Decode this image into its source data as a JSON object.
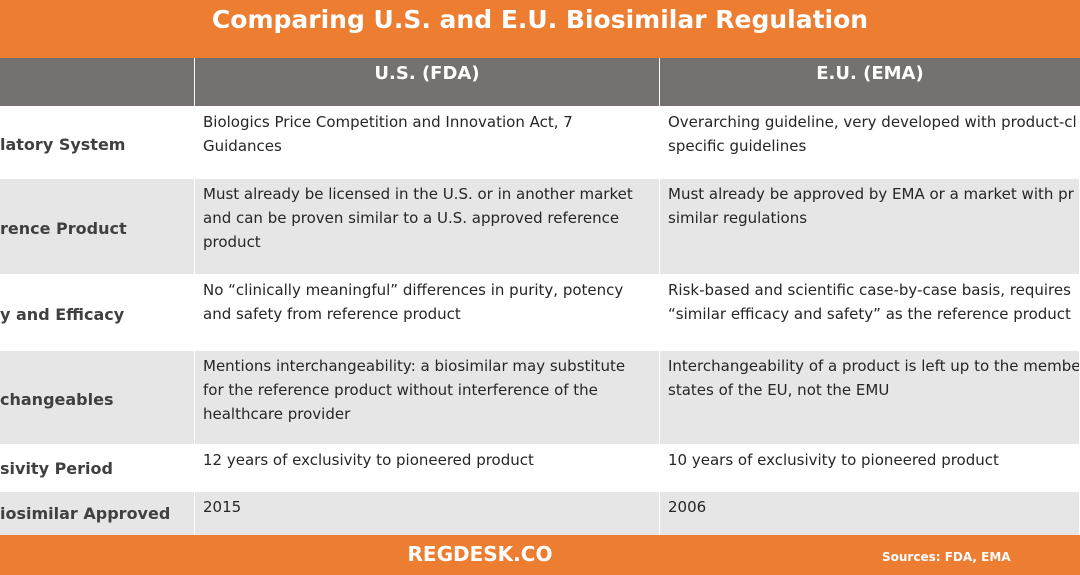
{
  "header": {
    "title": "Comparing U.S. and E.U. Biosimilar Regulation"
  },
  "table": {
    "columns": [
      "U.S. (FDA)",
      "E.U. (EMA)"
    ],
    "rows": [
      {
        "label": "latory System",
        "us": [
          "Biologics Price Competition and Innovation Act, 7",
          "Guidances"
        ],
        "eu": [
          "Overarching guideline, very developed with product-cl",
          "specific guidelines"
        ]
      },
      {
        "label": "rence Product",
        "us": [
          "Must already be licensed in the U.S. or in another market",
          "and can be proven similar to a U.S. approved reference",
          "product"
        ],
        "eu": [
          "Must already be approved by EMA or a market with pr",
          "similar regulations"
        ]
      },
      {
        "label": "y and Efficacy",
        "us": [
          "No “clinically meaningful” differences in purity, potency",
          "and safety from reference product"
        ],
        "eu": [
          "Risk-based and scientific case-by-case basis, requires",
          "“similar efficacy and safety” as the reference product"
        ]
      },
      {
        "label": "changeables",
        "us": [
          "Mentions interchangeability: a biosimilar may substitute",
          "for the reference product without interference of the",
          "healthcare provider"
        ],
        "eu": [
          "Interchangeability of a product is left up to the membe",
          "states of the EU, not the EMU"
        ]
      },
      {
        "label": "sivity Period",
        "us": [
          "12 years of exclusivity to pioneered product"
        ],
        "eu": [
          "10 years of exclusivity to pioneered product"
        ]
      },
      {
        "label": "iosimilar Approved",
        "us": [
          "2015"
        ],
        "eu": [
          "2006"
        ]
      }
    ]
  },
  "footer": {
    "brand": "REGDESK.CO",
    "sources": "Sources: FDA, EMA"
  }
}
